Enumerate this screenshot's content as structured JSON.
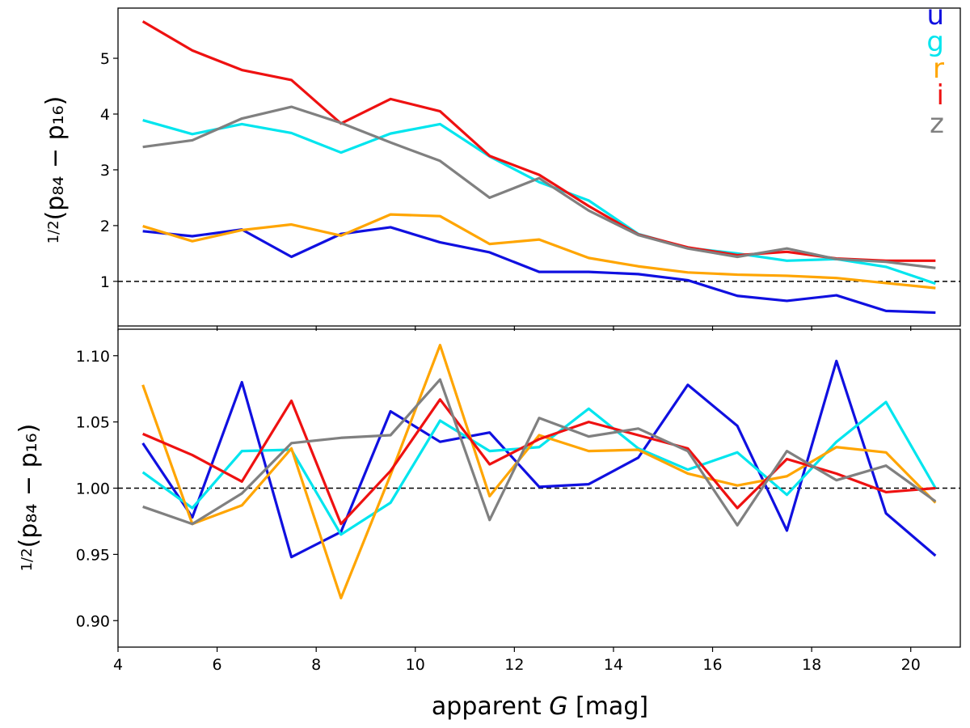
{
  "chart_data": [
    {
      "type": "line",
      "panel": "top",
      "ylabel": "½(p₈₄ − p₁₆)",
      "ylabel_frac": "1/2",
      "ylabel_expr": "(p₈₄ − p₁₆)",
      "xlim": [
        4,
        21
      ],
      "ylim": [
        0.2,
        5.9
      ],
      "yticks": [
        1,
        2,
        3,
        4,
        5
      ],
      "ytick_labels": [
        "1",
        "2",
        "3",
        "4",
        "5"
      ],
      "reference_line": 1.0,
      "x": [
        4.5,
        5.5,
        6.5,
        7.5,
        8.5,
        9.5,
        10.5,
        11.5,
        12.5,
        13.5,
        14.5,
        15.5,
        16.5,
        17.5,
        18.5,
        19.5,
        20.5
      ],
      "series": [
        {
          "name": "u",
          "color": "#1010e0",
          "values": [
            1.9,
            1.81,
            1.93,
            1.44,
            1.85,
            1.97,
            1.7,
            1.52,
            1.17,
            1.17,
            1.13,
            1.02,
            0.74,
            0.65,
            0.75,
            0.47,
            0.44
          ]
        },
        {
          "name": "g",
          "color": "#00e5ee",
          "values": [
            3.89,
            3.64,
            3.82,
            3.66,
            3.31,
            3.65,
            3.82,
            3.24,
            2.78,
            2.45,
            1.85,
            1.6,
            1.5,
            1.37,
            1.4,
            1.26,
            0.96
          ]
        },
        {
          "name": "r",
          "color": "#ffa500",
          "values": [
            1.99,
            1.72,
            1.92,
            2.02,
            1.82,
            2.2,
            2.17,
            1.67,
            1.75,
            1.42,
            1.27,
            1.16,
            1.12,
            1.1,
            1.06,
            0.97,
            0.88
          ]
        },
        {
          "name": "i",
          "color": "#ee1111",
          "values": [
            5.66,
            5.14,
            4.79,
            4.61,
            3.83,
            4.27,
            4.05,
            3.25,
            2.91,
            2.35,
            1.84,
            1.61,
            1.47,
            1.53,
            1.41,
            1.37,
            1.37
          ]
        },
        {
          "name": "z",
          "color": "#808080",
          "values": [
            3.41,
            3.53,
            3.92,
            4.13,
            3.84,
            3.49,
            3.16,
            2.5,
            2.85,
            2.27,
            1.83,
            1.59,
            1.44,
            1.59,
            1.4,
            1.35,
            1.24
          ]
        }
      ]
    },
    {
      "type": "line",
      "panel": "bottom",
      "ylabel": "½(p₈₄ − p₁₆)",
      "ylabel_frac": "1/2",
      "ylabel_expr": "(p₈₄ − p₁₆)",
      "xlabel": "apparent G [mag]",
      "xlabel_pre": "apparent ",
      "xlabel_var": "G",
      "xlabel_post": " [mag]",
      "xlim": [
        4,
        21
      ],
      "ylim": [
        0.88,
        1.12
      ],
      "xticks": [
        4,
        6,
        8,
        10,
        12,
        14,
        16,
        18,
        20
      ],
      "xtick_labels": [
        "4",
        "6",
        "8",
        "10",
        "12",
        "14",
        "16",
        "18",
        "20"
      ],
      "yticks": [
        0.9,
        0.95,
        1.0,
        1.05,
        1.1
      ],
      "ytick_labels": [
        "0.90",
        "0.95",
        "1.00",
        "1.05",
        "1.10"
      ],
      "reference_line": 1.0,
      "x": [
        4.5,
        5.5,
        6.5,
        7.5,
        8.5,
        9.5,
        10.5,
        11.5,
        12.5,
        13.5,
        14.5,
        15.5,
        16.5,
        17.5,
        18.5,
        19.5,
        20.5
      ],
      "series": [
        {
          "name": "u",
          "color": "#1010e0",
          "values": [
            1.034,
            0.978,
            1.08,
            0.948,
            0.967,
            1.058,
            1.035,
            1.042,
            1.001,
            1.003,
            1.023,
            1.078,
            1.047,
            0.968,
            1.096,
            0.981,
            0.949
          ]
        },
        {
          "name": "g",
          "color": "#00e5ee",
          "values": [
            1.012,
            0.985,
            1.028,
            1.029,
            0.965,
            0.989,
            1.051,
            1.028,
            1.031,
            1.06,
            1.03,
            1.014,
            1.027,
            0.995,
            1.035,
            1.065,
            1.0
          ]
        },
        {
          "name": "r",
          "color": "#ffa500",
          "values": [
            1.078,
            0.973,
            0.987,
            1.03,
            0.917,
            1.01,
            1.108,
            0.994,
            1.04,
            1.028,
            1.029,
            1.011,
            1.002,
            1.009,
            1.031,
            1.027,
            0.989
          ]
        },
        {
          "name": "i",
          "color": "#ee1111",
          "values": [
            1.041,
            1.025,
            1.005,
            1.066,
            0.973,
            1.013,
            1.067,
            1.018,
            1.037,
            1.05,
            1.04,
            1.03,
            0.985,
            1.022,
            1.011,
            0.997,
            1.0
          ]
        },
        {
          "name": "z",
          "color": "#808080",
          "values": [
            0.986,
            0.973,
            0.996,
            1.034,
            1.038,
            1.04,
            1.082,
            0.976,
            1.053,
            1.039,
            1.045,
            1.028,
            0.972,
            1.028,
            1.006,
            1.017,
            0.99
          ]
        }
      ]
    }
  ],
  "legend": [
    {
      "label": "u",
      "color": "#1010e0"
    },
    {
      "label": "g",
      "color": "#00e5ee"
    },
    {
      "label": "r",
      "color": "#ffa500"
    },
    {
      "label": "i",
      "color": "#ee1111"
    },
    {
      "label": "z",
      "color": "#808080"
    }
  ],
  "legend_placement": "top-right"
}
